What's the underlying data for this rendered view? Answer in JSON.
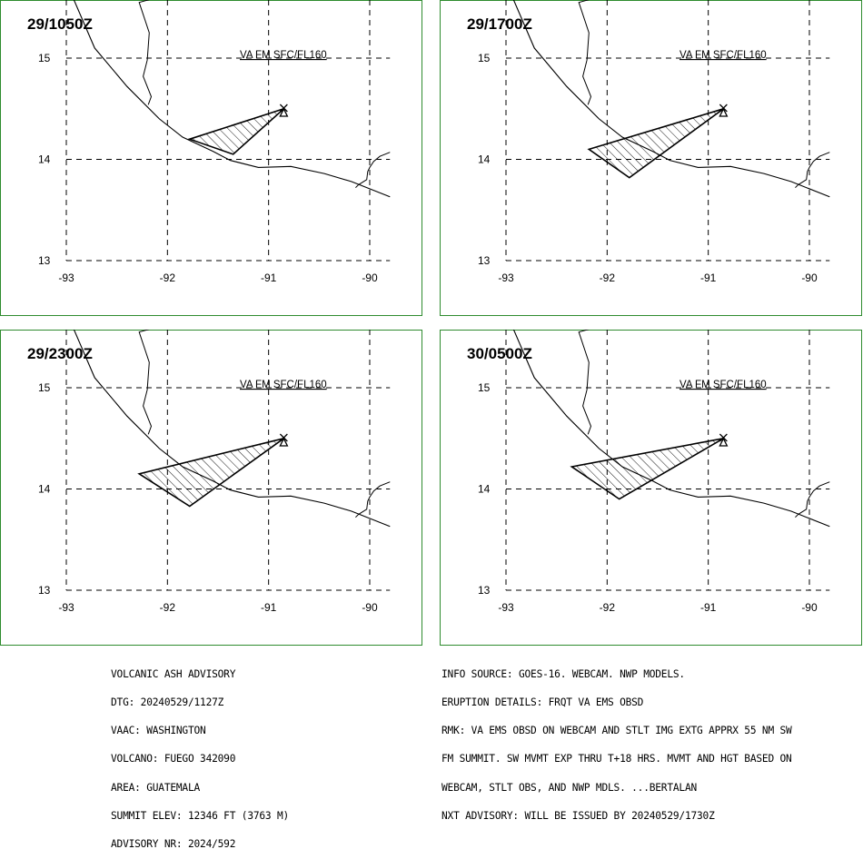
{
  "panels": [
    {
      "time": "29/1050Z",
      "label": "VA FM SFC/FL160",
      "polygon": [
        [
          -90.85,
          14.5
        ],
        [
          -91.78,
          14.2
        ],
        [
          -91.35,
          14.05
        ],
        [
          -90.85,
          14.5
        ]
      ]
    },
    {
      "time": "29/1700Z",
      "label": "VA FM SFC/FL160",
      "polygon": [
        [
          -90.85,
          14.5
        ],
        [
          -92.18,
          14.1
        ],
        [
          -91.78,
          13.82
        ],
        [
          -90.85,
          14.5
        ]
      ]
    },
    {
      "time": "29/2300Z",
      "label": "VA FM SFC/FL160",
      "polygon": [
        [
          -90.85,
          14.5
        ],
        [
          -92.28,
          14.15
        ],
        [
          -91.78,
          13.83
        ],
        [
          -90.85,
          14.5
        ]
      ]
    },
    {
      "time": "30/0500Z",
      "label": "VA FM SFC/FL160",
      "polygon": [
        [
          -90.85,
          14.5
        ],
        [
          -92.35,
          14.22
        ],
        [
          -91.88,
          13.9
        ],
        [
          -90.85,
          14.5
        ]
      ]
    }
  ],
  "axes": {
    "lon_ticks": [
      "-93",
      "-92",
      "-91",
      "-90"
    ],
    "lat_ticks": [
      "15",
      "14",
      "13"
    ]
  },
  "volcano": {
    "symbol": "volcano-triangle-x",
    "lon": -90.85,
    "lat": 14.48
  },
  "advisory_left": [
    "VOLCANIC ASH ADVISORY",
    "DTG: 20240529/1127Z",
    "VAAC: WASHINGTON",
    "VOLCANO: FUEGO 342090",
    "AREA: GUATEMALA",
    "SUMMIT ELEV: 12346 FT (3763 M)",
    "ADVISORY NR: 2024/592"
  ],
  "advisory_right": [
    "INFO SOURCE: GOES-16. WEBCAM. NWP MODELS.",
    "ERUPTION DETAILS: FRQT VA EMS OBSD",
    "RMK: VA EMS OBSD ON WEBCAM AND STLT IMG EXTG APPRX 55 NM SW",
    "FM SUMMIT. SW MVMT EXP THRU T+18 HRS. MVMT AND HGT BASED ON",
    "WEBCAM, STLT OBS, AND NWP MDLS. ...BERTALAN",
    "NXT ADVISORY: WILL BE ISSUED BY 20240529/1730Z"
  ],
  "colors": {
    "border": "#2e8b2e",
    "ink": "#000000"
  }
}
